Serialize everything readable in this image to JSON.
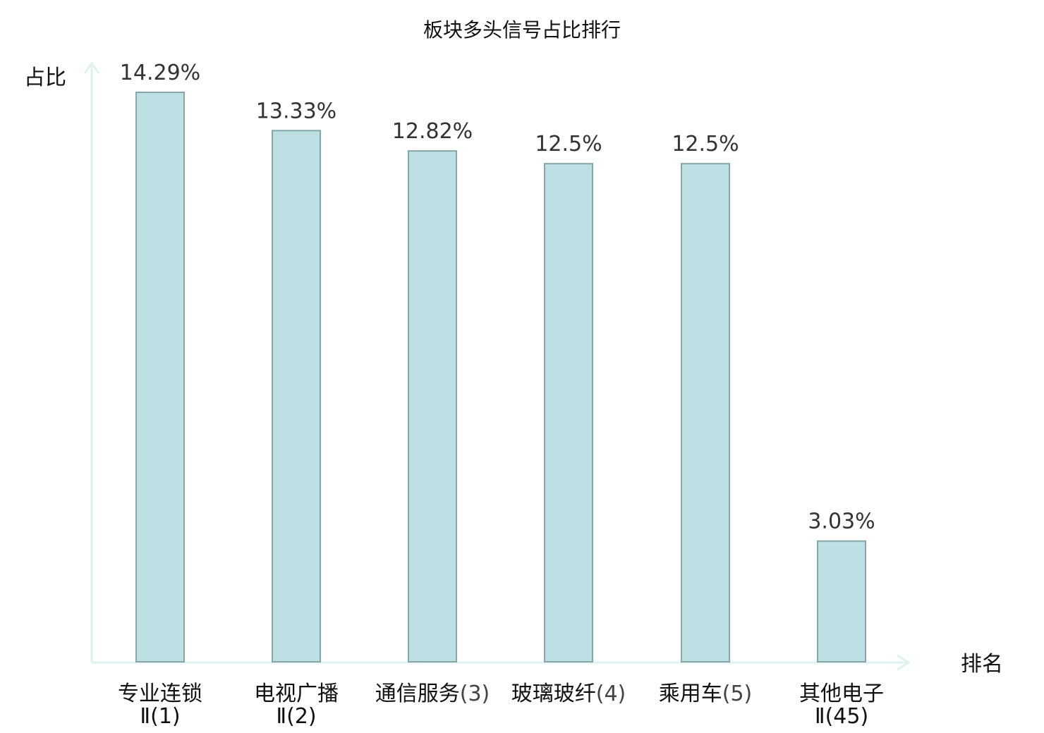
{
  "chart_data": {
    "type": "bar",
    "title": "板块多头信号占比排行",
    "ylabel": "占比",
    "xlabel": "排名",
    "categories": [
      {
        "name": "专业连锁",
        "rank": "Ⅱ(1)"
      },
      {
        "name": "电视广播",
        "rank": "Ⅱ(2)"
      },
      {
        "name": "通信服务",
        "rank": "(3)"
      },
      {
        "name": "玻璃玻纤",
        "rank": "(4)"
      },
      {
        "name": "乘用车",
        "rank": "(5)"
      },
      {
        "name": "其他电子",
        "rank": "Ⅱ(45)"
      }
    ],
    "values": [
      14.29,
      13.33,
      12.82,
      12.5,
      12.5,
      3.03
    ],
    "value_labels": [
      "14.29%",
      "13.33%",
      "12.82%",
      "12.5%",
      "12.5%",
      "3.03%"
    ],
    "highlight_index": 5,
    "ylim": [
      0,
      14.29
    ],
    "grid": false,
    "colors": {
      "bar_fill": "#bce0e3",
      "bar_stroke": "#86a6a8",
      "axis": "#dff2ee",
      "highlight_text": "#e0151b",
      "text": "#111111"
    }
  }
}
